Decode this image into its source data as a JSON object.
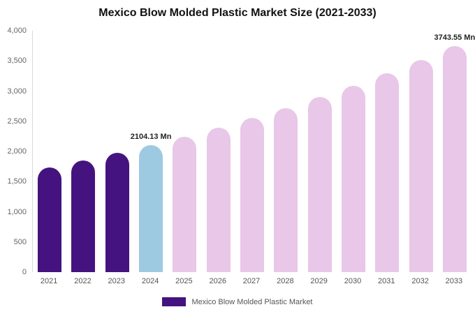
{
  "chart_data": {
    "type": "bar",
    "title": "Mexico Blow Molded Plastic Market Size (2021-2033)",
    "categories": [
      "2021",
      "2022",
      "2023",
      "2024",
      "2025",
      "2026",
      "2027",
      "2028",
      "2029",
      "2030",
      "2031",
      "2032",
      "2033"
    ],
    "values": [
      1737,
      1852,
      1974,
      2104.13,
      2243,
      2392,
      2550,
      2718,
      2898,
      3089,
      3294,
      3511,
      3743.55
    ],
    "bar_colors": [
      "#45137f",
      "#45137f",
      "#45137f",
      "#9ecae1",
      "#e8c7e8",
      "#e8c7e8",
      "#e8c7e8",
      "#e8c7e8",
      "#e8c7e8",
      "#e8c7e8",
      "#e8c7e8",
      "#e8c7e8",
      "#e8c7e8"
    ],
    "annotations": [
      {
        "index": 3,
        "text": "2104.13 Mn"
      },
      {
        "index": 12,
        "text": "3743.55 Mn"
      }
    ],
    "xlabel": "",
    "ylabel": "",
    "ylim": [
      0,
      4000
    ],
    "yticks": [
      {
        "value": 0,
        "label": "0"
      },
      {
        "value": 500,
        "label": "500"
      },
      {
        "value": 1000,
        "label": "1,000"
      },
      {
        "value": 1500,
        "label": "1,500"
      },
      {
        "value": 2000,
        "label": "2,000"
      },
      {
        "value": 2500,
        "label": "2,500"
      },
      {
        "value": 3000,
        "label": "3,000"
      },
      {
        "value": 3500,
        "label": "3,500"
      },
      {
        "value": 4000,
        "label": "4,000"
      }
    ],
    "grid": false,
    "legend": {
      "position": "bottom",
      "label": "Mexico Blow Molded Plastic Market",
      "swatch_color": "#45137f"
    }
  }
}
